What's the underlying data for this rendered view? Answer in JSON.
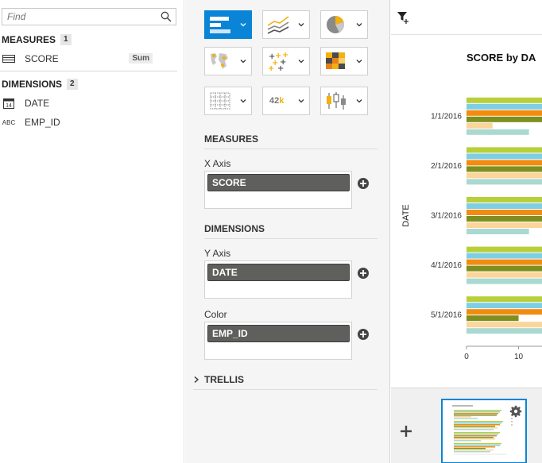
{
  "search": {
    "placeholder": "Find"
  },
  "measures": {
    "title": "MEASURES",
    "count": "1",
    "items": [
      {
        "name": "SCORE",
        "aggregation": "Sum",
        "icon": "measure-icon"
      }
    ]
  },
  "dimensions": {
    "title": "DIMENSIONS",
    "count": "2",
    "items": [
      {
        "name": "DATE",
        "icon": "calendar-icon",
        "icon_text": "14"
      },
      {
        "name": "EMP_ID",
        "icon": "text-type-icon",
        "icon_text": "ABC"
      }
    ]
  },
  "builder": {
    "chart_types": [
      {
        "name": "bar-chart",
        "selected": true
      },
      {
        "name": "line-chart"
      },
      {
        "name": "pie-chart"
      },
      {
        "name": "geo-map"
      },
      {
        "name": "scatter-plot"
      },
      {
        "name": "heat-map"
      },
      {
        "name": "table"
      },
      {
        "name": "numeric-point",
        "label": "42k"
      },
      {
        "name": "box-plot"
      }
    ],
    "measures_title": "MEASURES",
    "x_axis_label": "X Axis",
    "x_axis_value": "SCORE",
    "dimensions_title": "DIMENSIONS",
    "y_axis_label": "Y Axis",
    "y_axis_value": "DATE",
    "color_label": "Color",
    "color_value": "EMP_ID",
    "trellis_label": "TRELLIS"
  },
  "colors": {
    "accent": "#0a84d6",
    "pill": "#5f605e",
    "series": [
      "#b8cf3a",
      "#7ecfe6",
      "#f28c0f",
      "#7e8f1e",
      "#fcd59b",
      "#a9d9d0"
    ]
  },
  "chart_data": {
    "type": "bar",
    "orientation": "horizontal",
    "title": "SCORE by DA",
    "ylabel": "DATE",
    "categories": [
      "1/1/2016",
      "2/1/2016",
      "3/1/2016",
      "4/1/2016",
      "5/1/2016"
    ],
    "x_ticks": [
      "0",
      "10"
    ],
    "xlim": [
      0,
      14.5
    ],
    "series": [
      {
        "values": [
          14.5,
          14.5,
          14.5,
          14.5,
          14.5
        ]
      },
      {
        "values": [
          14.5,
          14.5,
          14.5,
          14.5,
          14.5
        ]
      },
      {
        "values": [
          14.5,
          14.5,
          14.5,
          14.5,
          14.5
        ]
      },
      {
        "values": [
          14.5,
          14.5,
          14.5,
          14.5,
          10
        ]
      },
      {
        "values": [
          5,
          14.5,
          14.5,
          14.5,
          14.5
        ]
      },
      {
        "values": [
          12,
          14.5,
          12,
          14.5,
          14.5
        ]
      }
    ]
  }
}
